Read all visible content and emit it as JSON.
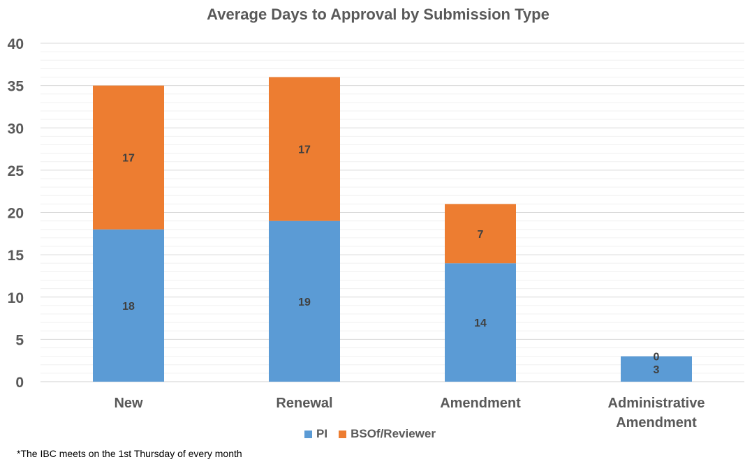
{
  "chart_data": {
    "type": "bar",
    "stacked": true,
    "title": "Average Days to Approval by Submission Type",
    "categories": [
      "New",
      "Renewal",
      "Amendment",
      "Administrative Amendment"
    ],
    "category_lines": [
      [
        "New"
      ],
      [
        "Renewal"
      ],
      [
        "Amendment"
      ],
      [
        "Administrative",
        "Amendment"
      ]
    ],
    "series": [
      {
        "name": "PI",
        "values": [
          18,
          19,
          14,
          3
        ],
        "color": "#5B9BD5"
      },
      {
        "name": "BSOf/Reviewer",
        "values": [
          17,
          17,
          7,
          0
        ],
        "color": "#ED7D31"
      }
    ],
    "ylim": [
      0,
      40
    ],
    "yticks": [
      0,
      5,
      10,
      15,
      20,
      25,
      30,
      35,
      40
    ],
    "minor_grid_step": 1,
    "grid": true,
    "legend_position": "bottom"
  },
  "footnote": "*The IBC meets on the 1st Thursday of every month"
}
